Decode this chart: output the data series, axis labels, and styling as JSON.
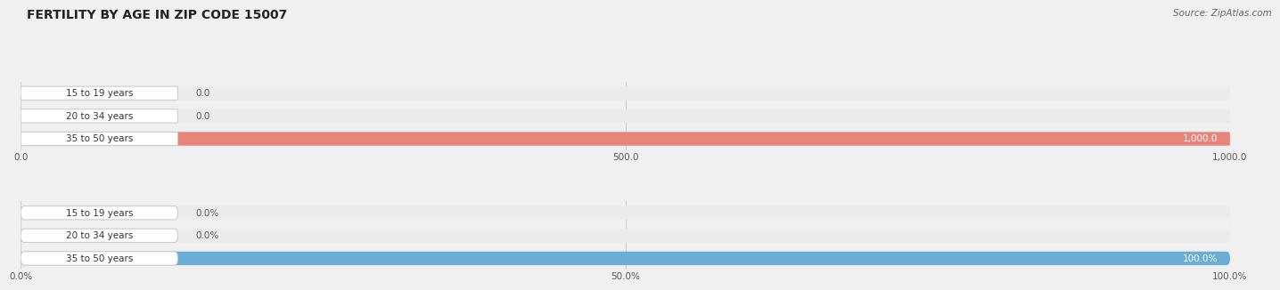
{
  "title": "FERTILITY BY AGE IN ZIP CODE 15007",
  "source": "Source: ZipAtlas.com",
  "top_chart": {
    "categories": [
      "15 to 19 years",
      "20 to 34 years",
      "35 to 50 years"
    ],
    "values": [
      0.0,
      0.0,
      1000.0
    ],
    "bar_color": "#e8857a",
    "bar_bg_color": "#ebebeb",
    "xlim": [
      0,
      1000
    ],
    "xticks": [
      0.0,
      500.0,
      1000.0
    ],
    "xtick_labels": [
      "0.0",
      "500.0",
      "1,000.0"
    ],
    "value_labels": [
      "0.0",
      "0.0",
      "1,000.0"
    ]
  },
  "bottom_chart": {
    "categories": [
      "15 to 19 years",
      "20 to 34 years",
      "35 to 50 years"
    ],
    "values": [
      0.0,
      0.0,
      100.0
    ],
    "bar_color": "#6aaed6",
    "bar_bg_color": "#ebebeb",
    "xlim": [
      0,
      100
    ],
    "xticks": [
      0.0,
      50.0,
      100.0
    ],
    "xtick_labels": [
      "0.0%",
      "50.0%",
      "100.0%"
    ],
    "value_labels": [
      "0.0%",
      "0.0%",
      "100.0%"
    ]
  },
  "fig_bg_color": "#f0f0f0",
  "panel_bg_color": "#f0f0f0",
  "label_bg_color": "#ffffff",
  "label_border_color": "#cccccc",
  "title_fontsize": 10,
  "label_fontsize": 7.5,
  "tick_fontsize": 7.5,
  "source_fontsize": 7.5,
  "bar_height": 0.6,
  "grid_color": "#d0d0d0"
}
